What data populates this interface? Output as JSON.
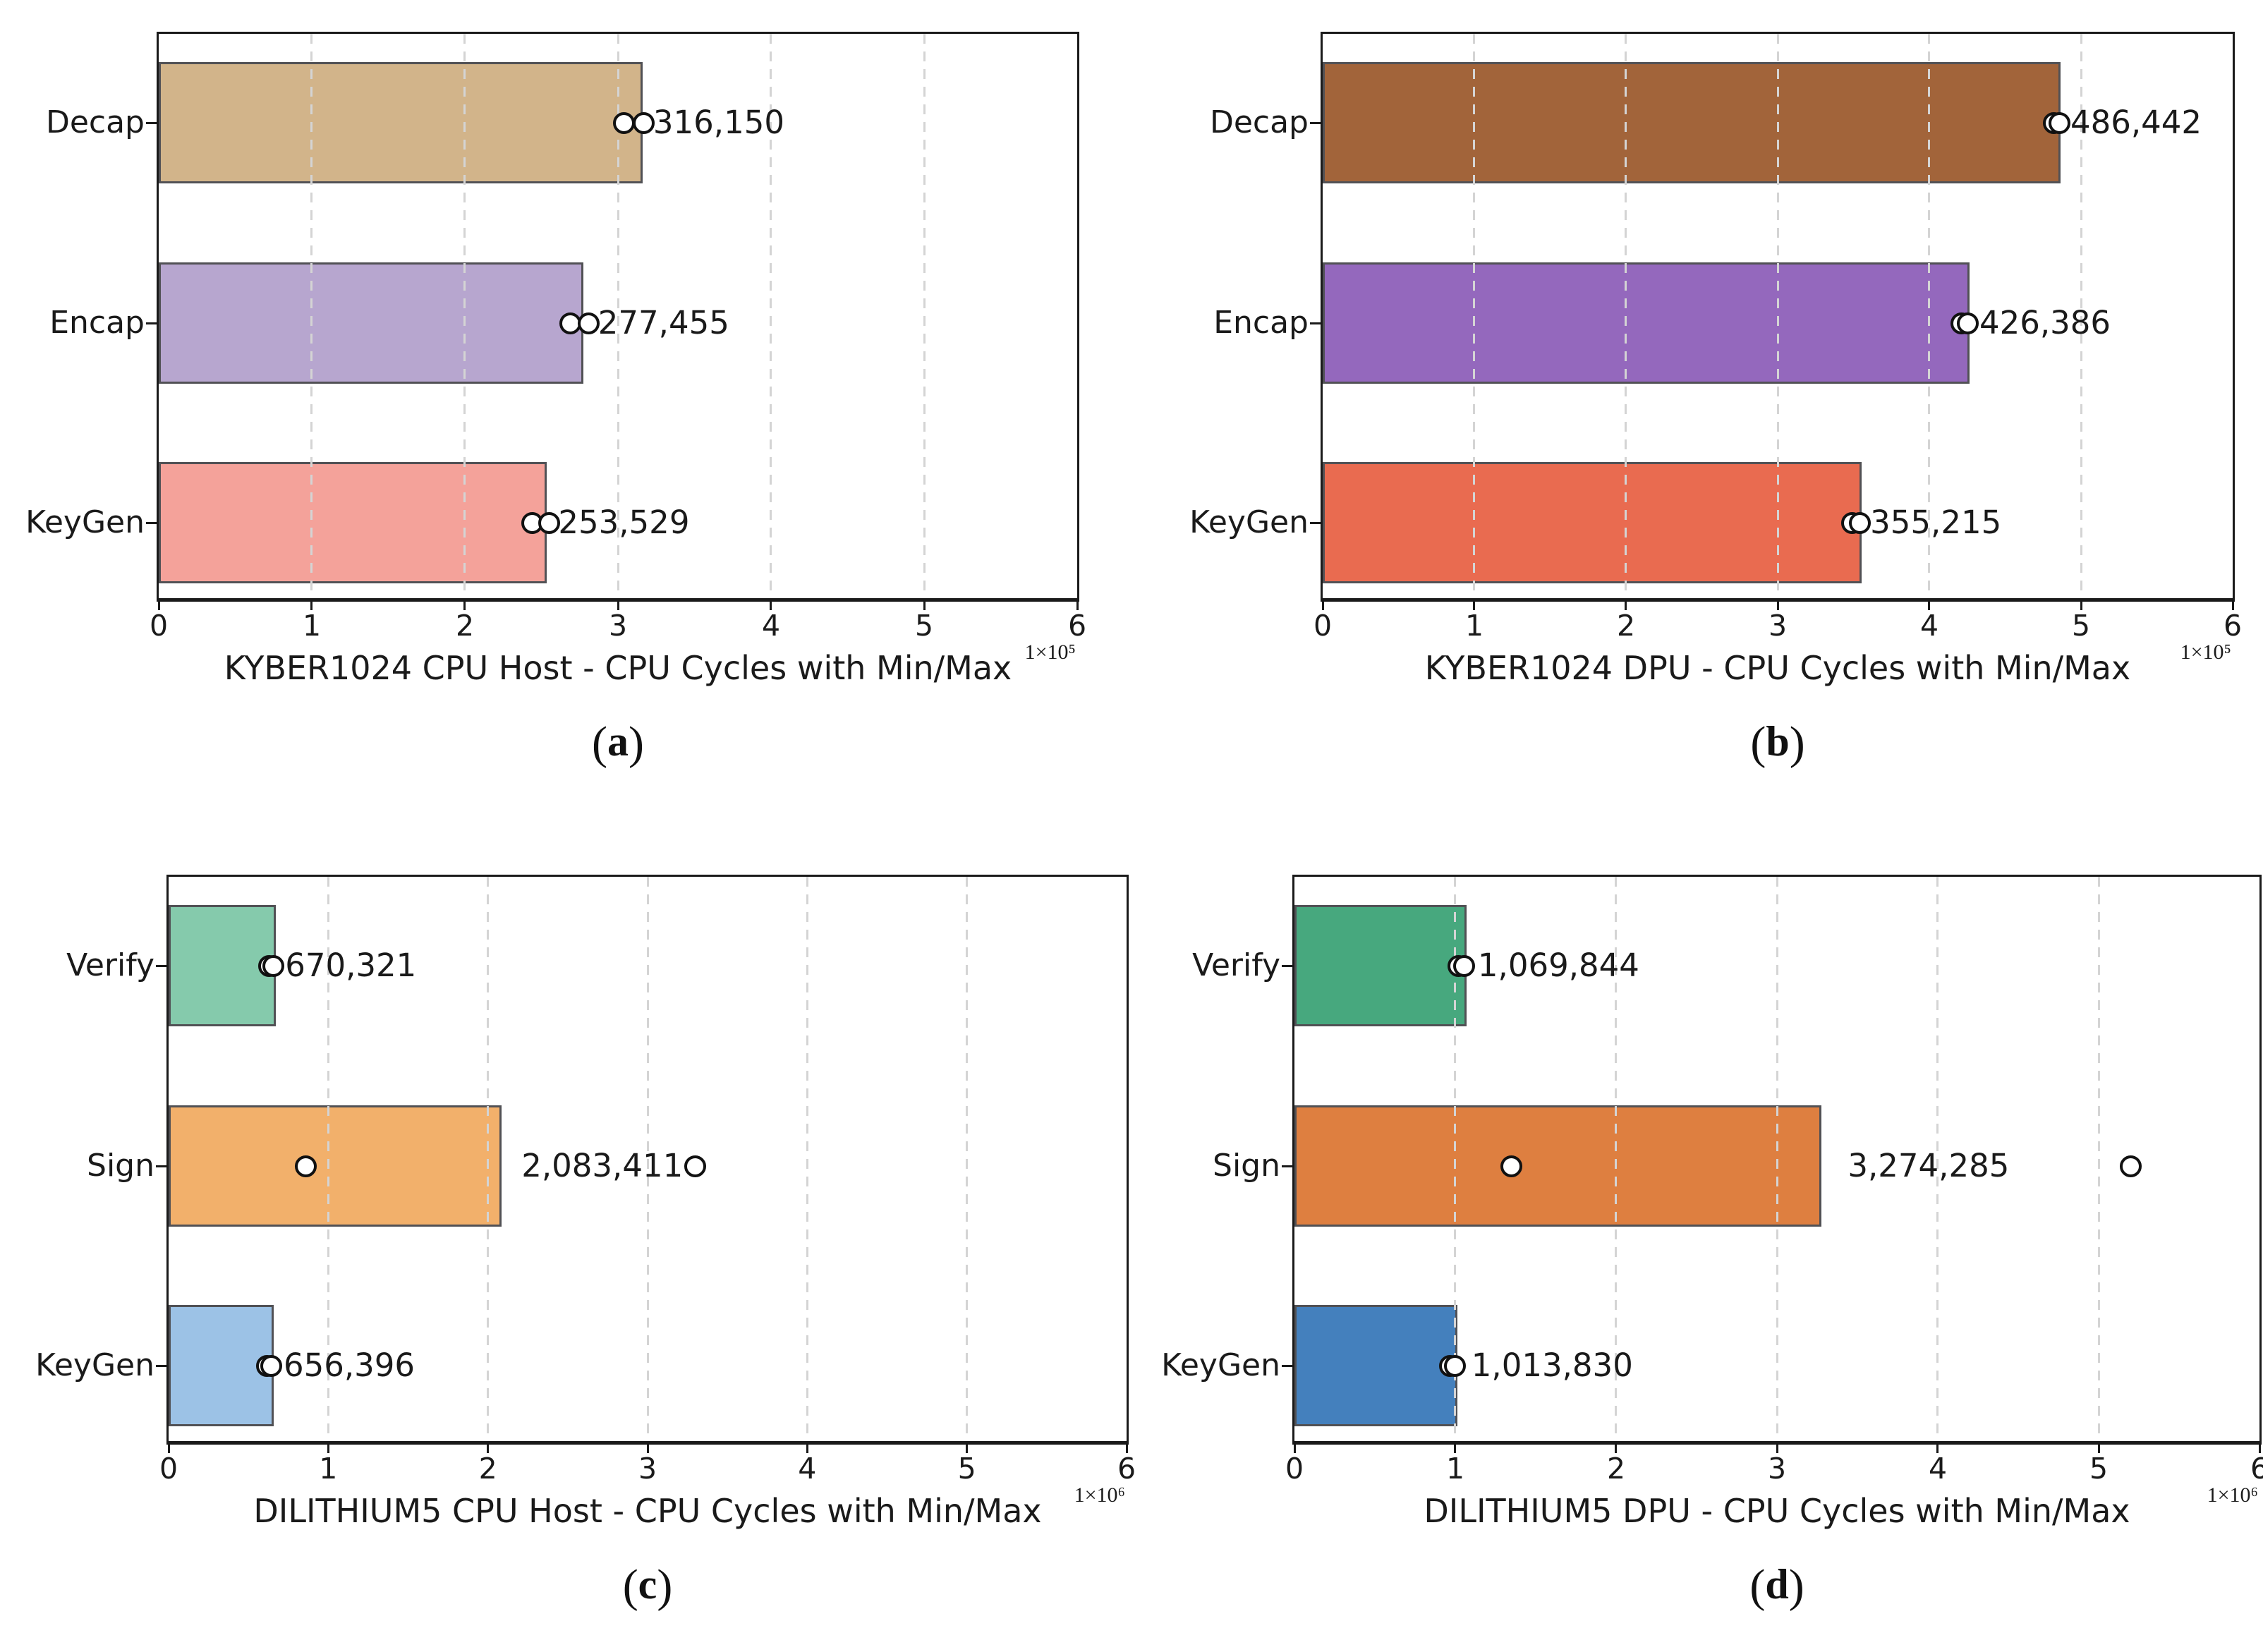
{
  "figure": {
    "background": "#ffffff",
    "text_color": "#1a1a1a",
    "grid_color": "#d4d4d4",
    "bar_edge_color": "#515155",
    "axis_color": "#1a1a1a",
    "marker_fill": "#ffffff",
    "marker_edge": "#111111"
  },
  "charts": [
    {
      "name": "kyber1024-cpu-host",
      "xlabel": "KYBER1024 CPU Host - CPU Cycles with Min/Max",
      "offset_label": "1×10⁵",
      "xticks": [
        "0",
        "1",
        "2",
        "3",
        "4",
        "5",
        "6"
      ],
      "caption": {
        "open": "(",
        "letter": "a",
        "close": ")"
      },
      "rows": [
        {
          "label": "Decap",
          "value_label": "316,150",
          "bar": 3.1615,
          "min": 3.04,
          "max": 3.17,
          "label_x": 3.23,
          "color": "#d2b48a"
        },
        {
          "label": "Encap",
          "value_label": "277,455",
          "bar": 2.77455,
          "min": 2.69,
          "max": 2.81,
          "label_x": 2.87,
          "color": "#b7a6cf"
        },
        {
          "label": "KeyGen",
          "value_label": "253,529",
          "bar": 2.53529,
          "min": 2.44,
          "max": 2.55,
          "label_x": 2.61,
          "color": "#f4a29a"
        }
      ]
    },
    {
      "name": "kyber1024-dpu",
      "xlabel": "KYBER1024 DPU - CPU Cycles with Min/Max",
      "offset_label": "1×10⁵",
      "xticks": [
        "0",
        "1",
        "2",
        "3",
        "4",
        "5",
        "6"
      ],
      "caption": {
        "open": "(",
        "letter": "b",
        "close": ")"
      },
      "rows": [
        {
          "label": "Decap",
          "value_label": "486,442",
          "bar": 4.86442,
          "min": 4.82,
          "max": 4.86,
          "label_x": 4.93,
          "color": "#a2643a"
        },
        {
          "label": "Encap",
          "value_label": "426,386",
          "bar": 4.26386,
          "min": 4.21,
          "max": 4.255,
          "label_x": 4.33,
          "color": "#9468bd"
        },
        {
          "label": "KeyGen",
          "value_label": "355,215",
          "bar": 3.55215,
          "min": 3.49,
          "max": 3.54,
          "label_x": 3.61,
          "color": "#e96b50"
        }
      ]
    },
    {
      "name": "dilithium5-cpu-host",
      "xlabel": "DILITHIUM5 CPU Host - CPU Cycles with Min/Max",
      "offset_label": "1×10⁶",
      "xticks": [
        "0",
        "1",
        "2",
        "3",
        "4",
        "5",
        "6"
      ],
      "caption": {
        "open": "(",
        "letter": "c",
        "close": ")"
      },
      "rows": [
        {
          "label": "Verify",
          "value_label": "670,321",
          "bar": 0.670321,
          "min": 0.628,
          "max": 0.655,
          "label_x": 0.73,
          "color": "#85caac"
        },
        {
          "label": "Sign",
          "value_label": "2,083,411",
          "bar": 2.083411,
          "min": 0.86,
          "max": 3.3,
          "label_x": 2.21,
          "color": "#f2b06b"
        },
        {
          "label": "KeyGen",
          "value_label": "656,396",
          "bar": 0.656396,
          "min": 0.618,
          "max": 0.643,
          "label_x": 0.72,
          "color": "#9cc2e6"
        }
      ]
    },
    {
      "name": "dilithium5-dpu",
      "xlabel": "DILITHIUM5 DPU - CPU Cycles with Min/Max",
      "offset_label": "1×10⁶",
      "xticks": [
        "0",
        "1",
        "2",
        "3",
        "4",
        "5",
        "6"
      ],
      "caption": {
        "open": "(",
        "letter": "d",
        "close": ")"
      },
      "rows": [
        {
          "label": "Verify",
          "value_label": "1,069,844",
          "bar": 1.069844,
          "min": 1.02,
          "max": 1.055,
          "label_x": 1.14,
          "color": "#47a87e"
        },
        {
          "label": "Sign",
          "value_label": "3,274,285",
          "bar": 3.274285,
          "min": 1.35,
          "max": 5.2,
          "label_x": 3.44,
          "color": "#de7f40"
        },
        {
          "label": "KeyGen",
          "value_label": "1,013,830",
          "bar": 1.01383,
          "min": 0.965,
          "max": 1.0,
          "label_x": 1.1,
          "color": "#4480bd"
        }
      ]
    }
  ],
  "chart_data": [
    {
      "type": "bar",
      "orientation": "horizontal",
      "title": "KYBER1024 CPU Host - CPU Cycles with Min/Max",
      "categories": [
        "KeyGen",
        "Encap",
        "Decap"
      ],
      "values": [
        253529,
        277455,
        316150
      ],
      "min_values_estimated": [
        244000,
        269000,
        304000
      ],
      "max_values_estimated": [
        255000,
        281000,
        317000
      ],
      "xlim": [
        0,
        600000
      ],
      "x_tick_step": 100000,
      "x_scale_factor": "1e5",
      "grid": true,
      "legend": "none",
      "caption": "(a)"
    },
    {
      "type": "bar",
      "orientation": "horizontal",
      "title": "KYBER1024 DPU - CPU Cycles with Min/Max",
      "categories": [
        "KeyGen",
        "Encap",
        "Decap"
      ],
      "values": [
        355215,
        426386,
        486442
      ],
      "min_values_estimated": [
        349000,
        421000,
        482000
      ],
      "max_values_estimated": [
        354000,
        426000,
        486000
      ],
      "xlim": [
        0,
        600000
      ],
      "x_tick_step": 100000,
      "x_scale_factor": "1e5",
      "grid": true,
      "legend": "none",
      "caption": "(b)"
    },
    {
      "type": "bar",
      "orientation": "horizontal",
      "title": "DILITHIUM5 CPU Host - CPU Cycles with Min/Max",
      "categories": [
        "KeyGen",
        "Sign",
        "Verify"
      ],
      "values": [
        656396,
        2083411,
        670321
      ],
      "min_values_estimated": [
        620000,
        860000,
        630000
      ],
      "max_values_estimated": [
        645000,
        3300000,
        655000
      ],
      "xlim": [
        0,
        6000000
      ],
      "x_tick_step": 1000000,
      "x_scale_factor": "1e6",
      "grid": true,
      "legend": "none",
      "caption": "(c)"
    },
    {
      "type": "bar",
      "orientation": "horizontal",
      "title": "DILITHIUM5 DPU - CPU Cycles with Min/Max",
      "categories": [
        "KeyGen",
        "Sign",
        "Verify"
      ],
      "values": [
        1013830,
        3274285,
        1069844
      ],
      "min_values_estimated": [
        965000,
        1350000,
        1020000
      ],
      "max_values_estimated": [
        1000000,
        5200000,
        1055000
      ],
      "xlim": [
        0,
        6000000
      ],
      "x_tick_step": 1000000,
      "x_scale_factor": "1e6",
      "grid": true,
      "legend": "none",
      "caption": "(d)"
    }
  ]
}
